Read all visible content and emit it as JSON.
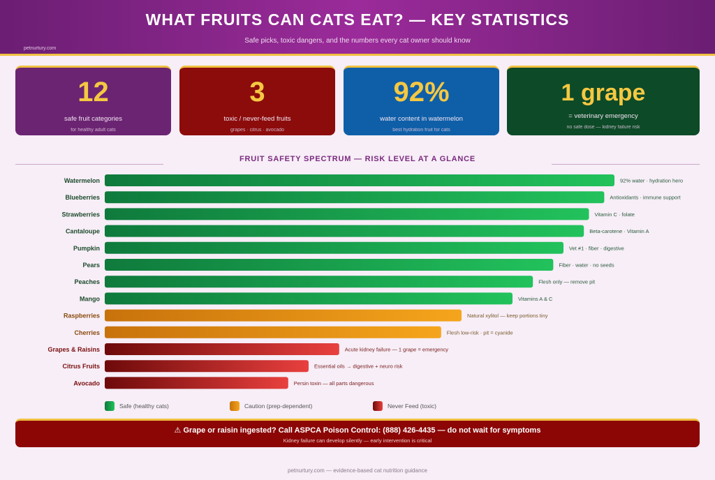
{
  "header": {
    "title": "WHAT FRUITS CAN CATS EAT? — KEY STATISTICS",
    "subtitle": "Safe picks, toxic dangers, and the numbers every cat owner should know",
    "site": "petnurtury.com"
  },
  "cards": [
    {
      "value": "12",
      "label": "safe fruit categories",
      "note": "for healthy adult cats",
      "color": "#6b2472"
    },
    {
      "value": "3",
      "label": "toxic / never-feed fruits",
      "note": "grapes · citrus · avocado",
      "color": "#8c0c0c"
    },
    {
      "value": "92%",
      "label": "water content in watermelon",
      "note": "best hydration fruit for cats",
      "color": "#0f5fa8"
    },
    {
      "value": "1 grape",
      "label": "= veterinary emergency",
      "note": "no safe dose — kidney failure risk",
      "color": "#0d4a27"
    }
  ],
  "chart_data": {
    "type": "bar",
    "orientation": "horizontal",
    "title": "FRUIT SAFETY SPECTRUM — RISK LEVEL AT A GLANCE",
    "categories": [
      "Watermelon",
      "Blueberries",
      "Strawberries",
      "Cantaloupe",
      "Pumpkin",
      "Pears",
      "Peaches",
      "Mango",
      "Raspberries",
      "Cherries",
      "Grapes & Raisins",
      "Citrus Fruits",
      "Avocado"
    ],
    "values": [
      100,
      98,
      95,
      94,
      90,
      88,
      84,
      80,
      70,
      66,
      46,
      40,
      36
    ],
    "levels": [
      "safe",
      "safe",
      "safe",
      "safe",
      "safe",
      "safe",
      "safe",
      "safe",
      "caution",
      "caution",
      "toxic",
      "toxic",
      "toxic"
    ],
    "notes": [
      "92% water · hydration hero",
      "Antioxidants · immune support",
      "Vitamin C · folate",
      "Beta-carotene · Vitamin A",
      "Vet #1 · fiber · digestive",
      "Fiber · water · no seeds",
      "Flesh only — remove pit",
      "Vitamins A & C",
      "Natural xylitol — keep portions tiny",
      "Flesh low-risk · pit = cyanide",
      "Acute kidney failure — 1 grape = emergency",
      "Essential oils → digestive + neuro risk",
      "Persin toxin — all parts dangerous"
    ],
    "xlim": [
      0,
      100
    ],
    "grid": false,
    "legend_position": "bottom",
    "legend": [
      {
        "key": "safe",
        "label": "Safe (healthy cats)"
      },
      {
        "key": "caution",
        "label": "Caution (prep-dependent)"
      },
      {
        "key": "toxic",
        "label": "Never Feed (toxic)"
      }
    ],
    "colors": {
      "safe": [
        "#0f7a3c",
        "#22c25c"
      ],
      "caution": [
        "#c8720c",
        "#f5a51c"
      ],
      "toxic": [
        "#6e0a0a",
        "#e8403e"
      ]
    },
    "label_colors": {
      "safe": "#1d4a2c",
      "caution": "#8a4a0c",
      "toxic": "#7a1010"
    },
    "note_colors": {
      "safe": "#2a5a3c",
      "caution": "#7a5a2c",
      "toxic": "#7a2020"
    }
  },
  "alert": {
    "icon": "warning-icon",
    "text": "Grape or raisin ingested? Call ASPCA Poison Control: (888) 426-4435 — do not wait for symptoms",
    "sub": "Kidney failure can develop silently — early intervention is critical"
  },
  "footer": "petnurtury.com — evidence-based cat nutrition guidance"
}
